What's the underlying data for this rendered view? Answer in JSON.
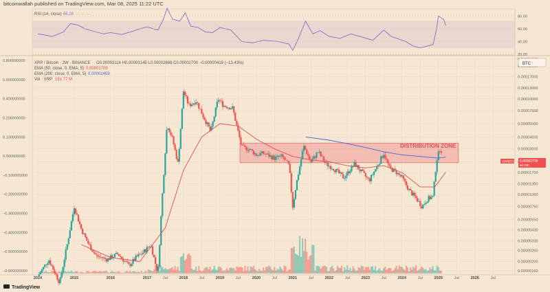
{
  "header": {
    "publisher": "bitcoinwallah published on TradingView.com, Mar 08, 2025 11:22 UTC"
  },
  "footer": {
    "logo_text": "TradingView"
  },
  "rsi_panel": {
    "legend_name": "RSI (14, close)",
    "legend_value": "65.28",
    "legend_extra": "—  —  —",
    "y_ticks": [
      "80.00",
      "60.00",
      "40.00",
      "20.00"
    ]
  },
  "main_legend": {
    "symbol": "XRP / Bitcoin · 2W · BINANCE",
    "ohlc": "O0.00003116  H0.00003145  L0.00002668  C0.00002700  −0.00000419 (−13.43%)",
    "ema50_label": "EMA (50, close, 0, EMA, 5)",
    "ema50_value": "0.00001709",
    "ema200_label": "EMA (200, close, 0, EMA, 5)",
    "ema200_value": "0.00002459",
    "vol_label": "Vol · XRP",
    "vol_value": "181.77 M"
  },
  "currency_badge": "BTC",
  "price_tags": {
    "pair": "XRPBTC",
    "price": "0.00002700",
    "countdown": "6d 13h"
  },
  "annotation": {
    "text": "DISTRIBUTION ZONE"
  },
  "colors": {
    "up": "#26a69a",
    "down": "#ef5350",
    "ema50": "#e05050",
    "ema200": "#4a62d8",
    "rsi": "#8a6cc9",
    "zone": "#f19a9a"
  },
  "chart_data": {
    "type": "candlestick",
    "title": "XRP / Bitcoin · 2W · BINANCE",
    "y_scale": "log",
    "right_axis_ticks": [
      "0.00026000",
      "0.00022000",
      "0.00017000",
      "0.00013000",
      "0.00010000",
      "0.00007500",
      "0.00005500",
      "0.00004000",
      "0.00003000",
      "0.00002200",
      "0.00001700",
      "0.00001300",
      "0.00001000",
      "0.00000750",
      "0.00000550",
      "0.00000430",
      "0.00000330",
      "0.00000260",
      "0.00000200",
      "0.00000160"
    ],
    "left_axis_ticks": [
      "0.800000000",
      "0.600000000",
      "0.400000000",
      "0.200000000",
      "0.100000000",
      "0.000000000",
      "−0.100000000",
      "−0.200000000",
      "−0.300000000",
      "−0.400000000",
      "−0.500000000",
      "−0.600000000"
    ],
    "x_ticks": [
      "2014",
      "2015",
      "2016",
      "2017",
      "Jul",
      "2018",
      "Jul",
      "2019",
      "Jul",
      "2020",
      "Jul",
      "2021",
      "Jul",
      "2022",
      "Jul",
      "2023",
      "Jul",
      "2024",
      "Jul",
      "2025",
      "Jul",
      "2026",
      "Jul"
    ],
    "x_tick_years": [
      2014,
      2015,
      2016,
      2017,
      2017.5,
      2018,
      2018.5,
      2019,
      2019.5,
      2020,
      2020.5,
      2021,
      2021.5,
      2022,
      2022.5,
      2023,
      2023.5,
      2024,
      2024.5,
      2025,
      2025.5,
      2026,
      2026.5
    ],
    "distribution_zone": {
      "from": 2019.55,
      "to": 2025.55,
      "low": 2.15e-05,
      "high": 3.45e-05
    },
    "close_price_path": [
      [
        2014.0,
        1.4e-06
      ],
      [
        2014.3,
        2.1e-06
      ],
      [
        2014.6,
        1.2e-06
      ],
      [
        2014.8,
        2.9e-06
      ],
      [
        2015.0,
        7.5e-06
      ],
      [
        2015.2,
        4.3e-06
      ],
      [
        2015.4,
        3e-06
      ],
      [
        2015.6,
        2.3e-06
      ],
      [
        2015.9,
        2.1e-06
      ],
      [
        2016.2,
        2.4e-06
      ],
      [
        2016.5,
        1.8e-06
      ],
      [
        2016.7,
        2.2e-06
      ],
      [
        2016.9,
        2.5e-06
      ],
      [
        2017.1,
        3e-06
      ],
      [
        2017.3,
        1.5e-06
      ],
      [
        2017.4,
        7.5e-06
      ],
      [
        2017.55,
        5.5e-05
      ],
      [
        2017.7,
        3.8e-05
      ],
      [
        2017.85,
        2.1e-05
      ],
      [
        2018.0,
        0.00012
      ],
      [
        2018.15,
        8.5e-05
      ],
      [
        2018.35,
        9.5e-05
      ],
      [
        2018.55,
        6.5e-05
      ],
      [
        2018.75,
        4.5e-05
      ],
      [
        2018.95,
        0.0001
      ],
      [
        2019.1,
        8.5e-05
      ],
      [
        2019.35,
        8e-05
      ],
      [
        2019.6,
        3.1e-05
      ],
      [
        2019.8,
        3e-05
      ],
      [
        2020.0,
        2.6e-05
      ],
      [
        2020.2,
        2.7e-05
      ],
      [
        2020.5,
        2.4e-05
      ],
      [
        2020.7,
        2.5e-05
      ],
      [
        2020.9,
        2e-05
      ],
      [
        2021.0,
        7.5e-06
      ],
      [
        2021.1,
        1.3e-05
      ],
      [
        2021.3,
        3.2e-05
      ],
      [
        2021.5,
        2.2e-05
      ],
      [
        2021.7,
        2.8e-05
      ],
      [
        2021.9,
        2.1e-05
      ],
      [
        2022.1,
        1.9e-05
      ],
      [
        2022.4,
        1.5e-05
      ],
      [
        2022.7,
        2.1e-05
      ],
      [
        2022.9,
        1.7e-05
      ],
      [
        2023.1,
        1.4e-05
      ],
      [
        2023.35,
        2.1e-05
      ],
      [
        2023.5,
        2.7e-05
      ],
      [
        2023.65,
        1.9e-05
      ],
      [
        2023.85,
        1.7e-05
      ],
      [
        2024.0,
        1.5e-05
      ],
      [
        2024.2,
        1.1e-05
      ],
      [
        2024.4,
        9e-06
      ],
      [
        2024.55,
        7.5e-06
      ],
      [
        2024.7,
        9e-06
      ],
      [
        2024.85,
        9.5e-06
      ],
      [
        2024.95,
        2.3e-05
      ],
      [
        2025.05,
        3.1e-05
      ],
      [
        2025.1,
        2.7e-05
      ]
    ],
    "ema50_path": [
      [
        2015.2,
        3e-06
      ],
      [
        2016.0,
        2.2e-06
      ],
      [
        2016.8,
        2e-06
      ],
      [
        2017.5,
        4.5e-06
      ],
      [
        2018.0,
        1.8e-05
      ],
      [
        2018.5,
        4e-05
      ],
      [
        2019.0,
        5.5e-05
      ],
      [
        2019.5,
        5.2e-05
      ],
      [
        2020.0,
        3.8e-05
      ],
      [
        2020.5,
        3e-05
      ],
      [
        2021.0,
        2.5e-05
      ],
      [
        2021.5,
        2.3e-05
      ],
      [
        2022.0,
        2.2e-05
      ],
      [
        2022.5,
        2e-05
      ],
      [
        2023.0,
        1.9e-05
      ],
      [
        2023.5,
        2e-05
      ],
      [
        2024.0,
        1.7e-05
      ],
      [
        2024.5,
        1.2e-05
      ],
      [
        2024.9,
        1.2e-05
      ],
      [
        2025.2,
        1.71e-05
      ]
    ],
    "ema200_path": [
      [
        2021.35,
        4e-05
      ],
      [
        2022.0,
        3.7e-05
      ],
      [
        2022.5,
        3.4e-05
      ],
      [
        2023.0,
        3.1e-05
      ],
      [
        2023.5,
        2.8e-05
      ],
      [
        2024.0,
        2.6e-05
      ],
      [
        2024.5,
        2.5e-05
      ],
      [
        2025.0,
        2.4e-05
      ],
      [
        2025.2,
        2.46e-05
      ]
    ],
    "rsi_path": [
      [
        2014.0,
        52
      ],
      [
        2014.2,
        50
      ],
      [
        2014.4,
        48
      ],
      [
        2014.7,
        55
      ],
      [
        2014.9,
        68
      ],
      [
        2015.1,
        66
      ],
      [
        2015.3,
        60
      ],
      [
        2015.6,
        55
      ],
      [
        2015.8,
        52
      ],
      [
        2016.0,
        54
      ],
      [
        2016.3,
        51
      ],
      [
        2016.6,
        56
      ],
      [
        2016.8,
        60
      ],
      [
        2017.0,
        63
      ],
      [
        2017.3,
        58
      ],
      [
        2017.45,
        75
      ],
      [
        2017.55,
        92
      ],
      [
        2017.7,
        75
      ],
      [
        2017.9,
        72
      ],
      [
        2018.05,
        85
      ],
      [
        2018.2,
        64
      ],
      [
        2018.4,
        62
      ],
      [
        2018.6,
        55
      ],
      [
        2018.8,
        54
      ],
      [
        2019.0,
        62
      ],
      [
        2019.3,
        58
      ],
      [
        2019.6,
        40
      ],
      [
        2019.9,
        38
      ],
      [
        2020.2,
        42
      ],
      [
        2020.6,
        40
      ],
      [
        2020.9,
        36
      ],
      [
        2021.0,
        26
      ],
      [
        2021.15,
        44
      ],
      [
        2021.35,
        72
      ],
      [
        2021.55,
        52
      ],
      [
        2021.75,
        57
      ],
      [
        2022.0,
        48
      ],
      [
        2022.3,
        45
      ],
      [
        2022.6,
        52
      ],
      [
        2022.9,
        47
      ],
      [
        2023.2,
        42
      ],
      [
        2023.5,
        58
      ],
      [
        2023.7,
        48
      ],
      [
        2023.9,
        44
      ],
      [
        2024.1,
        40
      ],
      [
        2024.3,
        33
      ],
      [
        2024.5,
        30
      ],
      [
        2024.7,
        33
      ],
      [
        2024.85,
        35
      ],
      [
        2024.95,
        60
      ],
      [
        2025.0,
        80
      ],
      [
        2025.05,
        78
      ],
      [
        2025.15,
        74
      ],
      [
        2025.2,
        65
      ]
    ],
    "rsi_range": [
      20,
      90
    ],
    "price_range": [
      1.5e-06,
      0.00026
    ],
    "x_range": [
      2013.85,
      2027.1
    ]
  }
}
